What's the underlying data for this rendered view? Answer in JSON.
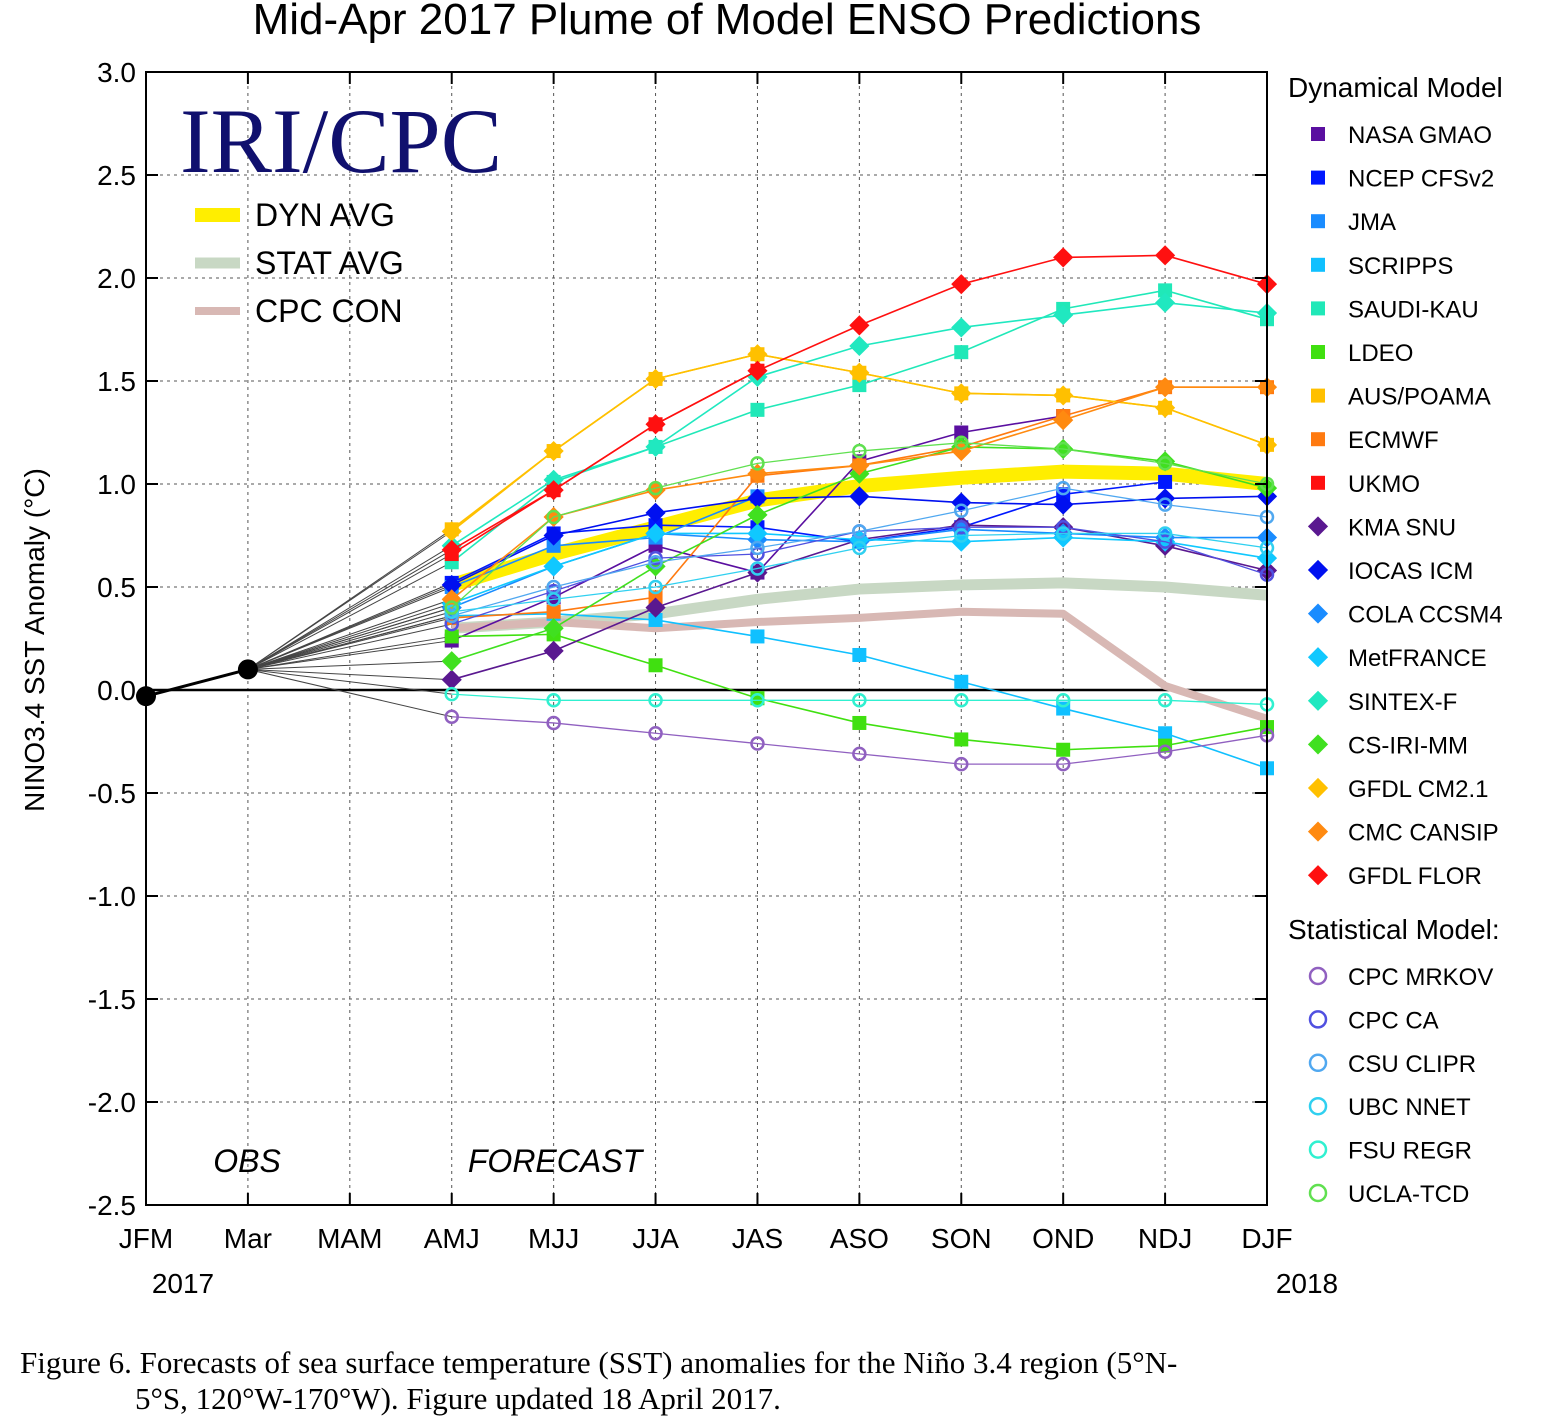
{
  "chart_data": {
    "type": "line",
    "title": "Mid-Apr 2017 Plume of Model ENSO Predictions",
    "ylabel": "NINO3.4 SST Anomaly (°C)",
    "ylim": [
      -2.5,
      3.0
    ],
    "yticks": [
      "3.0",
      "2.5",
      "2.0",
      "1.5",
      "1.0",
      "0.5",
      "0.0",
      "-0.5",
      "-1.0",
      "-1.5",
      "-2.0",
      "-2.5"
    ],
    "categories": [
      "JFM",
      "Mar",
      "MAM",
      "AMJ",
      "MJJ",
      "JJA",
      "JAS",
      "ASO",
      "SON",
      "OND",
      "NDJ",
      "DJF"
    ],
    "year_labels": {
      "start": "2017",
      "end": "2018"
    },
    "brand": "IRI/CPC",
    "period_labels": {
      "obs": "OBS",
      "forecast": "FORECAST"
    },
    "observed": {
      "JFM": -0.03,
      "Mar": 0.1
    },
    "averages": [
      {
        "name": "DYN AVG",
        "color": "#ffee00",
        "values": [
          null,
          null,
          null,
          0.51,
          0.66,
          0.79,
          0.92,
          0.99,
          1.03,
          1.06,
          1.05,
          1.0
        ]
      },
      {
        "name": "STAT AVG",
        "color": "#c8d8c4",
        "values": [
          null,
          null,
          null,
          0.3,
          0.33,
          0.37,
          0.44,
          0.49,
          0.51,
          0.52,
          0.5,
          0.46
        ]
      },
      {
        "name": "CPC CON",
        "color": "#d8b8b4",
        "values": [
          null,
          null,
          null,
          0.3,
          0.33,
          0.3,
          0.33,
          0.35,
          0.38,
          0.37,
          0.02,
          -0.14
        ]
      }
    ],
    "dynamical_header": "Dynamical Model",
    "statistical_header": "Statistical Model:",
    "series": [
      {
        "name": "NASA GMAO",
        "group": "dynamical",
        "marker": "square",
        "color": "#5a0fa0",
        "values": [
          null,
          null,
          null,
          0.24,
          0.45,
          0.7,
          0.57,
          1.11,
          1.25,
          1.33,
          null,
          null
        ]
      },
      {
        "name": "NCEP CFSv2",
        "group": "dynamical",
        "marker": "square",
        "color": "#0018ff",
        "values": [
          null,
          null,
          null,
          0.52,
          0.76,
          0.8,
          0.79,
          0.72,
          0.79,
          0.95,
          1.01,
          null
        ]
      },
      {
        "name": "JMA",
        "group": "dynamical",
        "marker": "square",
        "color": "#1a8cff",
        "values": [
          null,
          null,
          null,
          0.5,
          0.7,
          0.74,
          0.94,
          null,
          null,
          null,
          null,
          null
        ]
      },
      {
        "name": "SCRIPPS",
        "group": "dynamical",
        "marker": "square",
        "color": "#10c0ff",
        "values": [
          null,
          null,
          null,
          0.36,
          0.37,
          0.34,
          0.26,
          0.17,
          0.04,
          -0.09,
          -0.21,
          -0.38
        ]
      },
      {
        "name": "SAUDI-KAU",
        "group": "dynamical",
        "marker": "square",
        "color": "#20e8b8",
        "values": [
          null,
          null,
          null,
          0.62,
          1.01,
          1.18,
          1.36,
          1.48,
          1.64,
          1.85,
          1.94,
          1.8
        ]
      },
      {
        "name": "LDEO",
        "group": "dynamical",
        "marker": "square",
        "color": "#40e010",
        "values": [
          null,
          null,
          null,
          0.26,
          0.27,
          0.12,
          -0.04,
          -0.16,
          -0.24,
          -0.29,
          -0.27,
          -0.18
        ]
      },
      {
        "name": "AUS/POAMA",
        "group": "dynamical",
        "marker": "square",
        "color": "#ffc000",
        "values": [
          null,
          null,
          null,
          0.78,
          1.16,
          1.51,
          1.63,
          1.54,
          1.44,
          1.43,
          1.37,
          1.19
        ]
      },
      {
        "name": "ECMWF",
        "group": "dynamical",
        "marker": "square",
        "color": "#ff7a10",
        "values": [
          null,
          null,
          null,
          0.35,
          0.38,
          0.45,
          1.04,
          1.09,
          1.18,
          1.33,
          1.47,
          1.47
        ]
      },
      {
        "name": "UKMO",
        "group": "dynamical",
        "marker": "square",
        "color": "#ff1010",
        "values": [
          null,
          null,
          null,
          0.66,
          0.97,
          1.29,
          1.55,
          null,
          null,
          null,
          null,
          null
        ]
      },
      {
        "name": "KMA SNU",
        "group": "dynamical",
        "marker": "diamond",
        "color": "#5a1890",
        "values": [
          null,
          null,
          null,
          0.05,
          0.19,
          0.4,
          0.57,
          0.73,
          0.8,
          0.79,
          0.7,
          0.58
        ]
      },
      {
        "name": "IOCAS ICM",
        "group": "dynamical",
        "marker": "diamond",
        "color": "#0010f0",
        "values": [
          null,
          null,
          null,
          0.51,
          0.75,
          0.86,
          0.93,
          0.94,
          0.91,
          0.9,
          0.93,
          0.94
        ]
      },
      {
        "name": "COLA CCSM4",
        "group": "dynamical",
        "marker": "diamond",
        "color": "#1a8cff",
        "values": [
          null,
          null,
          null,
          0.4,
          0.6,
          0.76,
          0.73,
          0.72,
          0.78,
          0.76,
          0.74,
          0.74
        ]
      },
      {
        "name": "MetFRANCE",
        "group": "dynamical",
        "marker": "diamond",
        "color": "#10c8ff",
        "values": [
          null,
          null,
          null,
          0.42,
          0.6,
          0.76,
          0.76,
          0.73,
          0.72,
          0.74,
          0.72,
          0.64
        ]
      },
      {
        "name": "SINTEX-F",
        "group": "dynamical",
        "marker": "diamond",
        "color": "#20e8c0",
        "values": [
          null,
          null,
          null,
          0.7,
          1.02,
          1.18,
          1.52,
          1.67,
          1.76,
          1.82,
          1.88,
          1.83
        ]
      },
      {
        "name": "CS-IRI-MM",
        "group": "dynamical",
        "marker": "diamond",
        "color": "#40e020",
        "values": [
          null,
          null,
          null,
          0.14,
          0.3,
          0.6,
          0.85,
          1.05,
          1.18,
          1.17,
          1.11,
          0.98
        ]
      },
      {
        "name": "GFDL CM2.1",
        "group": "dynamical",
        "marker": "diamond",
        "color": "#ffc000",
        "values": [
          null,
          null,
          null,
          0.77,
          1.16,
          1.51,
          1.63,
          1.54,
          1.44,
          1.43,
          1.37,
          1.19
        ]
      },
      {
        "name": "CMC CANSIP",
        "group": "dynamical",
        "marker": "diamond",
        "color": "#ff8a10",
        "values": [
          null,
          null,
          null,
          0.44,
          0.84,
          0.97,
          1.05,
          1.09,
          1.16,
          1.31,
          1.47,
          1.47
        ]
      },
      {
        "name": "GFDL FLOR",
        "group": "dynamical",
        "marker": "diamond",
        "color": "#ff1010",
        "values": [
          null,
          null,
          null,
          0.68,
          0.97,
          1.29,
          1.55,
          1.77,
          1.97,
          2.1,
          2.11,
          1.97
        ]
      },
      {
        "name": "CPC MRKOV",
        "group": "statistical",
        "marker": "circle",
        "color": "#9060c0",
        "values": [
          null,
          null,
          null,
          -0.13,
          -0.16,
          -0.21,
          -0.26,
          -0.31,
          -0.36,
          -0.36,
          -0.3,
          -0.22
        ]
      },
      {
        "name": "CPC CA",
        "group": "statistical",
        "marker": "circle",
        "color": "#5050e0",
        "values": [
          null,
          null,
          null,
          0.32,
          0.48,
          0.64,
          0.66,
          0.77,
          0.79,
          0.79,
          0.72,
          0.56
        ]
      },
      {
        "name": "CSU CLIPR",
        "group": "statistical",
        "marker": "circle",
        "color": "#50a8f0",
        "values": [
          null,
          null,
          null,
          0.36,
          0.5,
          0.62,
          0.69,
          0.77,
          0.87,
          0.98,
          0.9,
          0.84
        ]
      },
      {
        "name": "UBC NNET",
        "group": "statistical",
        "marker": "circle",
        "color": "#30d0f0",
        "values": [
          null,
          null,
          null,
          0.38,
          0.44,
          0.5,
          0.59,
          0.69,
          0.75,
          0.76,
          0.76,
          0.69
        ]
      },
      {
        "name": "FSU REGR",
        "group": "statistical",
        "marker": "circle",
        "color": "#30f0d0",
        "values": [
          null,
          null,
          null,
          -0.02,
          -0.05,
          -0.05,
          -0.05,
          -0.05,
          -0.05,
          -0.05,
          -0.05,
          -0.07
        ]
      },
      {
        "name": "UCLA-TCD",
        "group": "statistical",
        "marker": "circle",
        "color": "#60e050",
        "values": [
          null,
          null,
          null,
          0.4,
          0.84,
          0.98,
          1.1,
          1.16,
          1.2,
          1.17,
          1.1,
          1.0
        ]
      }
    ]
  },
  "caption": {
    "line1": "Figure 6. Forecasts of sea surface temperature (SST) anomalies for the Niño 3.4 region (5°N-",
    "line2": "5°S, 120°W-170°W). Figure updated 18 April 2017."
  }
}
